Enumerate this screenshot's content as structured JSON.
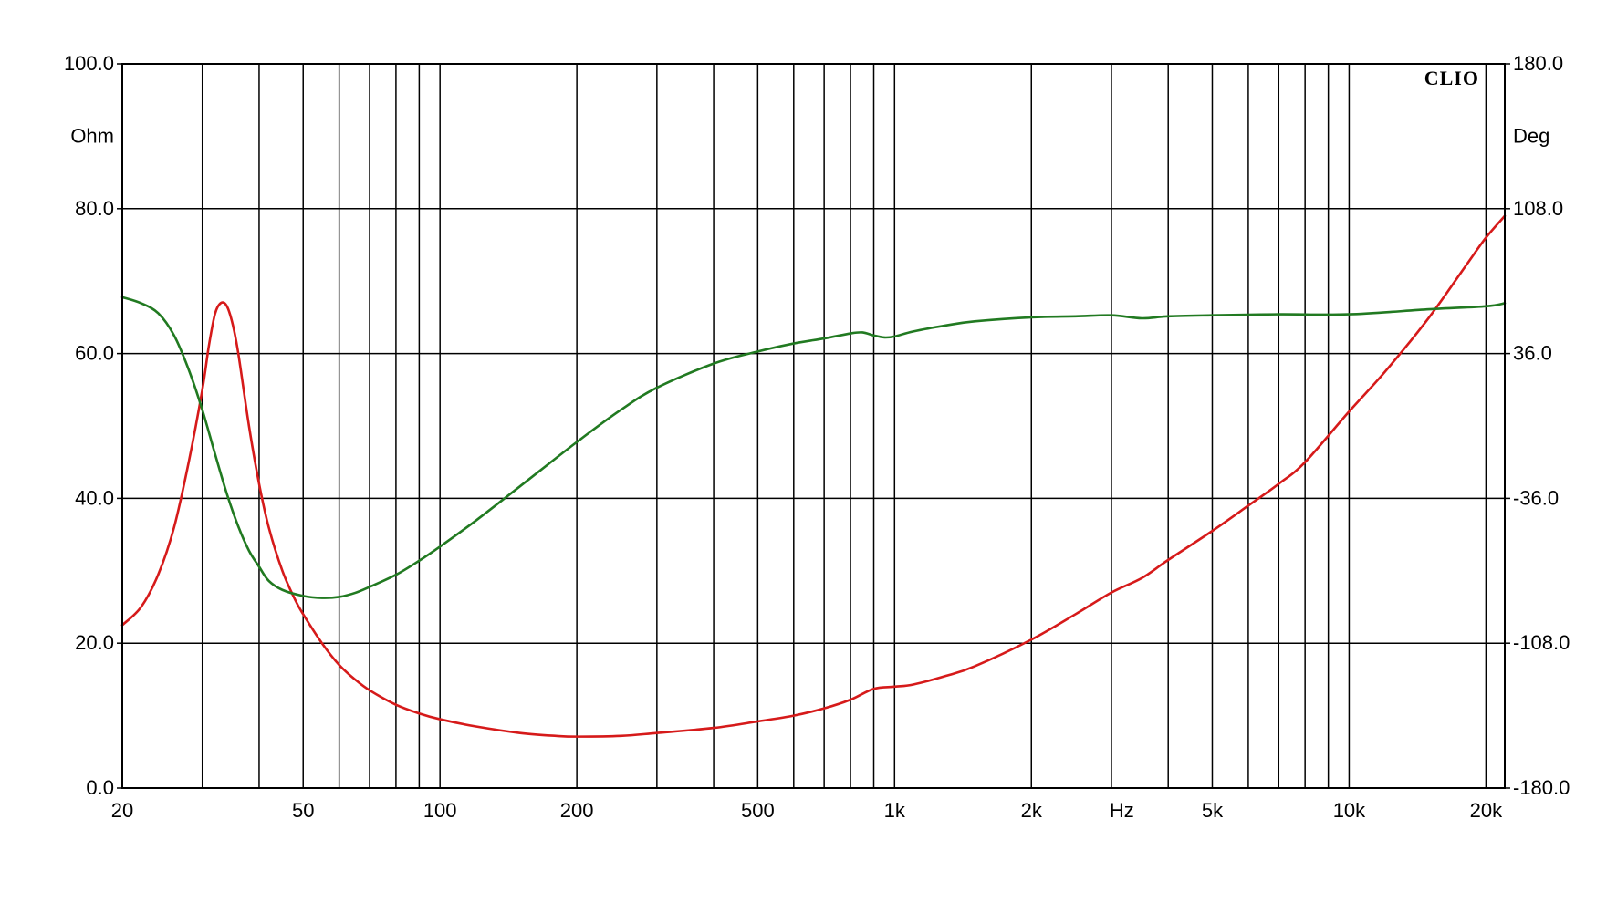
{
  "chart_data": {
    "type": "line",
    "title": "",
    "brand": "CLIO",
    "x_scale": "log",
    "xlim": [
      20,
      22000
    ],
    "xlabel": "Hz",
    "x_ticks": [
      {
        "value": 20,
        "label": "20"
      },
      {
        "value": 50,
        "label": "50"
      },
      {
        "value": 100,
        "label": "100"
      },
      {
        "value": 200,
        "label": "200"
      },
      {
        "value": 500,
        "label": "500"
      },
      {
        "value": 1000,
        "label": "1k"
      },
      {
        "value": 2000,
        "label": "2k"
      },
      {
        "value": 5000,
        "label": "5k"
      },
      {
        "value": 10000,
        "label": "10k"
      },
      {
        "value": 20000,
        "label": "20k"
      }
    ],
    "y_left": {
      "unit_label": "Ohm",
      "lim": [
        0,
        100
      ],
      "ticks": [
        {
          "value": 0,
          "label": "0.0"
        },
        {
          "value": 20,
          "label": "20.0"
        },
        {
          "value": 40,
          "label": "40.0"
        },
        {
          "value": 60,
          "label": "60.0"
        },
        {
          "value": 80,
          "label": "80.0"
        },
        {
          "value": 100,
          "label": "100.0"
        }
      ]
    },
    "y_right": {
      "unit_label": "Deg",
      "lim": [
        -180,
        180
      ],
      "ticks": [
        {
          "value": -180,
          "label": "-180.0"
        },
        {
          "value": -108,
          "label": "-108.0"
        },
        {
          "value": -36,
          "label": "-36.0"
        },
        {
          "value": 36,
          "label": "36.0"
        },
        {
          "value": 108,
          "label": "108.0"
        },
        {
          "value": 180,
          "label": "180.0"
        }
      ]
    },
    "grid": true,
    "series": [
      {
        "axis": "left",
        "color": "#d61a1a",
        "points": [
          [
            20,
            22.5
          ],
          [
            22,
            25
          ],
          [
            24,
            29.5
          ],
          [
            26,
            36
          ],
          [
            28,
            45
          ],
          [
            30,
            55
          ],
          [
            31,
            61
          ],
          [
            32,
            65.5
          ],
          [
            33,
            67
          ],
          [
            34,
            66.5
          ],
          [
            35,
            64
          ],
          [
            36,
            60
          ],
          [
            38,
            50
          ],
          [
            40,
            42
          ],
          [
            42,
            36
          ],
          [
            45,
            30
          ],
          [
            48,
            26
          ],
          [
            50,
            24
          ],
          [
            55,
            20
          ],
          [
            60,
            17
          ],
          [
            65,
            15
          ],
          [
            70,
            13.5
          ],
          [
            80,
            11.5
          ],
          [
            90,
            10.3
          ],
          [
            100,
            9.5
          ],
          [
            120,
            8.5
          ],
          [
            150,
            7.6
          ],
          [
            180,
            7.2
          ],
          [
            200,
            7.1
          ],
          [
            250,
            7.2
          ],
          [
            300,
            7.6
          ],
          [
            400,
            8.3
          ],
          [
            500,
            9.2
          ],
          [
            600,
            10
          ],
          [
            700,
            11
          ],
          [
            800,
            12.2
          ],
          [
            900,
            13.7
          ],
          [
            1000,
            14
          ],
          [
            1100,
            14.3
          ],
          [
            1300,
            15.5
          ],
          [
            1500,
            16.8
          ],
          [
            2000,
            20.5
          ],
          [
            2500,
            24
          ],
          [
            3000,
            27
          ],
          [
            3500,
            29
          ],
          [
            4000,
            31.5
          ],
          [
            5000,
            35.5
          ],
          [
            6000,
            39
          ],
          [
            7000,
            42
          ],
          [
            8000,
            45
          ],
          [
            10000,
            52
          ],
          [
            12000,
            57.5
          ],
          [
            15000,
            65
          ],
          [
            18000,
            72
          ],
          [
            20000,
            76
          ],
          [
            22000,
            79
          ]
        ]
      },
      {
        "axis": "right",
        "color": "#217a21",
        "points": [
          [
            20,
            64
          ],
          [
            22,
            61
          ],
          [
            24,
            56
          ],
          [
            26,
            45
          ],
          [
            28,
            28
          ],
          [
            30,
            8
          ],
          [
            32,
            -14
          ],
          [
            34,
            -34
          ],
          [
            36,
            -50
          ],
          [
            38,
            -62
          ],
          [
            40,
            -70
          ],
          [
            42,
            -77
          ],
          [
            45,
            -81.5
          ],
          [
            50,
            -84.5
          ],
          [
            55,
            -85.5
          ],
          [
            60,
            -85
          ],
          [
            65,
            -83
          ],
          [
            70,
            -80
          ],
          [
            80,
            -74
          ],
          [
            90,
            -67
          ],
          [
            100,
            -60
          ],
          [
            120,
            -47
          ],
          [
            150,
            -30
          ],
          [
            200,
            -8
          ],
          [
            250,
            8
          ],
          [
            300,
            19
          ],
          [
            400,
            31
          ],
          [
            500,
            37
          ],
          [
            600,
            41
          ],
          [
            700,
            43.5
          ],
          [
            800,
            46
          ],
          [
            850,
            46.5
          ],
          [
            900,
            45
          ],
          [
            950,
            44
          ],
          [
            1000,
            44.5
          ],
          [
            1100,
            47
          ],
          [
            1300,
            50
          ],
          [
            1500,
            52
          ],
          [
            2000,
            54
          ],
          [
            2500,
            54.5
          ],
          [
            3000,
            55
          ],
          [
            3500,
            53.5
          ],
          [
            4000,
            54.5
          ],
          [
            5000,
            55
          ],
          [
            7000,
            55.5
          ],
          [
            10000,
            55.5
          ],
          [
            15000,
            58
          ],
          [
            20000,
            59.5
          ],
          [
            22000,
            61
          ]
        ]
      }
    ]
  }
}
